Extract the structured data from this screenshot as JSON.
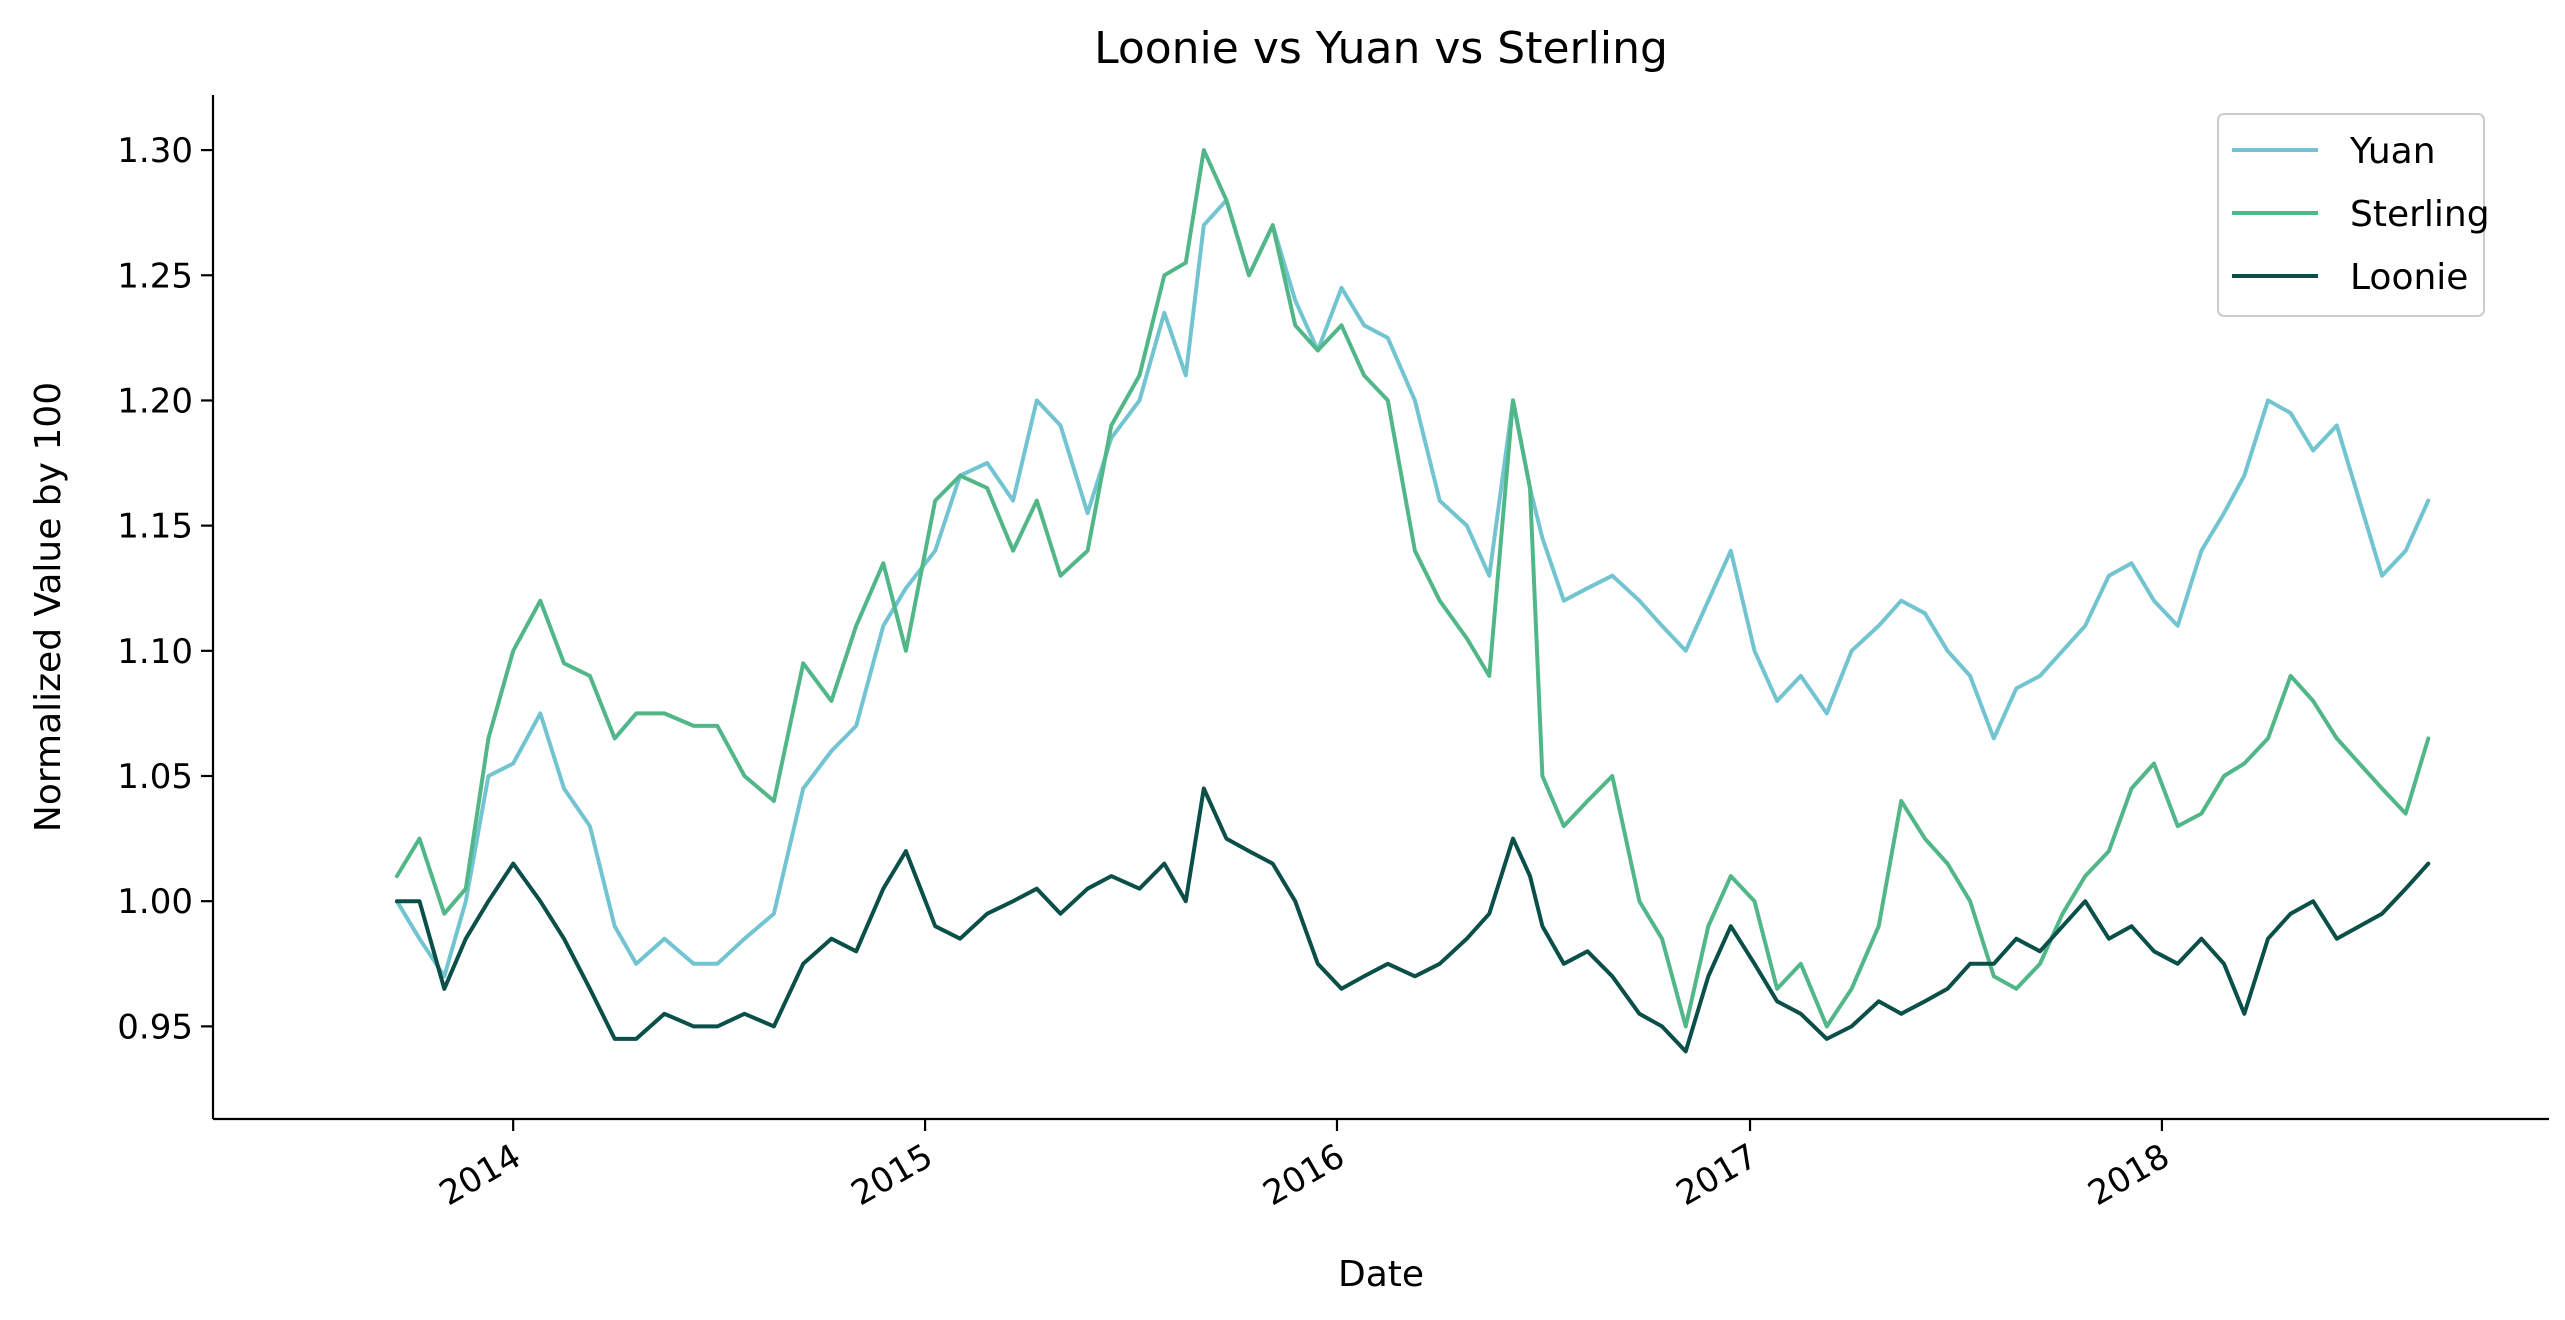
{
  "chart_data": {
    "type": "line",
    "title": "Loonie vs Yuan vs Sterling",
    "xlabel": "Date",
    "ylabel": "Normalized Value by 100",
    "x_ticks": [
      "2014",
      "2015",
      "2016",
      "2017",
      "2018"
    ],
    "y_ticks": [
      "0.95",
      "1.00",
      "1.05",
      "1.10",
      "1.15",
      "1.20",
      "1.25",
      "1.30"
    ],
    "xlim": [
      "2013-04-10",
      "2018-12-10"
    ],
    "ylim": [
      0.913,
      1.322
    ],
    "grid": false,
    "legend_position": "top-right",
    "x": [
      "2013-09-20",
      "2013-10-10",
      "2013-11-01",
      "2013-11-20",
      "2013-12-10",
      "2014-01-01",
      "2014-01-25",
      "2014-02-15",
      "2014-03-10",
      "2014-04-01",
      "2014-04-20",
      "2014-05-15",
      "2014-06-10",
      "2014-07-01",
      "2014-07-25",
      "2014-08-20",
      "2014-09-15",
      "2014-10-10",
      "2014-11-01",
      "2014-11-25",
      "2014-12-15",
      "2015-01-10",
      "2015-02-01",
      "2015-02-25",
      "2015-03-20",
      "2015-04-10",
      "2015-05-01",
      "2015-05-25",
      "2015-06-15",
      "2015-07-10",
      "2015-08-01",
      "2015-08-20",
      "2015-09-05",
      "2015-09-25",
      "2015-10-15",
      "2015-11-05",
      "2015-11-25",
      "2015-12-15",
      "2016-01-05",
      "2016-01-25",
      "2016-02-15",
      "2016-03-10",
      "2016-04-01",
      "2016-04-25",
      "2016-05-15",
      "2016-06-05",
      "2016-06-20",
      "2016-07-01",
      "2016-07-20",
      "2016-08-10",
      "2016-09-01",
      "2016-09-25",
      "2016-10-15",
      "2016-11-05",
      "2016-11-25",
      "2016-12-15",
      "2017-01-05",
      "2017-01-25",
      "2017-02-15",
      "2017-03-10",
      "2017-04-01",
      "2017-04-25",
      "2017-05-15",
      "2017-06-05",
      "2017-06-25",
      "2017-07-15",
      "2017-08-05",
      "2017-08-25",
      "2017-09-15",
      "2017-10-05",
      "2017-10-25",
      "2017-11-15",
      "2017-12-05",
      "2017-12-25",
      "2018-01-15",
      "2018-02-05",
      "2018-02-25",
      "2018-03-15",
      "2018-04-05",
      "2018-04-25",
      "2018-05-15",
      "2018-06-05",
      "2018-06-25",
      "2018-07-15",
      "2018-08-05",
      "2018-08-25"
    ],
    "series": [
      {
        "name": "Yuan",
        "color": "#72c5d0",
        "values": [
          1.0,
          0.985,
          0.97,
          1.0,
          1.05,
          1.055,
          1.075,
          1.045,
          1.03,
          0.99,
          0.975,
          0.985,
          0.975,
          0.975,
          0.985,
          0.995,
          1.045,
          1.06,
          1.07,
          1.11,
          1.125,
          1.14,
          1.17,
          1.175,
          1.16,
          1.2,
          1.19,
          1.155,
          1.185,
          1.2,
          1.235,
          1.21,
          1.27,
          1.28,
          1.25,
          1.27,
          1.24,
          1.22,
          1.245,
          1.23,
          1.225,
          1.2,
          1.16,
          1.15,
          1.13,
          1.2,
          1.165,
          1.145,
          1.12,
          1.125,
          1.13,
          1.12,
          1.11,
          1.1,
          1.12,
          1.14,
          1.1,
          1.08,
          1.09,
          1.075,
          1.1,
          1.11,
          1.12,
          1.115,
          1.1,
          1.09,
          1.065,
          1.085,
          1.09,
          1.1,
          1.11,
          1.13,
          1.135,
          1.12,
          1.11,
          1.14,
          1.155,
          1.17,
          1.2,
          1.195,
          1.18,
          1.19,
          1.16,
          1.13,
          1.14,
          1.16
        ]
      },
      {
        "name": "Sterling",
        "color": "#52b788",
        "values": [
          1.01,
          1.025,
          0.995,
          1.005,
          1.065,
          1.1,
          1.12,
          1.095,
          1.09,
          1.065,
          1.075,
          1.075,
          1.07,
          1.07,
          1.05,
          1.04,
          1.095,
          1.08,
          1.11,
          1.135,
          1.1,
          1.16,
          1.17,
          1.165,
          1.14,
          1.16,
          1.13,
          1.14,
          1.19,
          1.21,
          1.25,
          1.255,
          1.3,
          1.28,
          1.25,
          1.27,
          1.23,
          1.22,
          1.23,
          1.21,
          1.2,
          1.14,
          1.12,
          1.105,
          1.09,
          1.2,
          1.165,
          1.05,
          1.03,
          1.04,
          1.05,
          1.0,
          0.985,
          0.95,
          0.99,
          1.01,
          1.0,
          0.965,
          0.975,
          0.95,
          0.965,
          0.99,
          1.04,
          1.025,
          1.015,
          1.0,
          0.97,
          0.965,
          0.975,
          0.995,
          1.01,
          1.02,
          1.045,
          1.055,
          1.03,
          1.035,
          1.05,
          1.055,
          1.065,
          1.09,
          1.08,
          1.065,
          1.055,
          1.045,
          1.035,
          1.065
        ]
      },
      {
        "name": "Loonie",
        "color": "#0b4f49",
        "values": [
          1.0,
          1.0,
          0.965,
          0.985,
          1.0,
          1.015,
          1.0,
          0.985,
          0.965,
          0.945,
          0.945,
          0.955,
          0.95,
          0.95,
          0.955,
          0.95,
          0.975,
          0.985,
          0.98,
          1.005,
          1.02,
          0.99,
          0.985,
          0.995,
          1.0,
          1.005,
          0.995,
          1.005,
          1.01,
          1.005,
          1.015,
          1.0,
          1.045,
          1.025,
          1.02,
          1.015,
          1.0,
          0.975,
          0.965,
          0.97,
          0.975,
          0.97,
          0.975,
          0.985,
          0.995,
          1.025,
          1.01,
          0.99,
          0.975,
          0.98,
          0.97,
          0.955,
          0.95,
          0.94,
          0.97,
          0.99,
          0.975,
          0.96,
          0.955,
          0.945,
          0.95,
          0.96,
          0.955,
          0.96,
          0.965,
          0.975,
          0.975,
          0.985,
          0.98,
          0.99,
          1.0,
          0.985,
          0.99,
          0.98,
          0.975,
          0.985,
          0.975,
          0.955,
          0.985,
          0.995,
          1.0,
          0.985,
          0.99,
          0.995,
          1.005,
          1.015
        ]
      }
    ]
  }
}
